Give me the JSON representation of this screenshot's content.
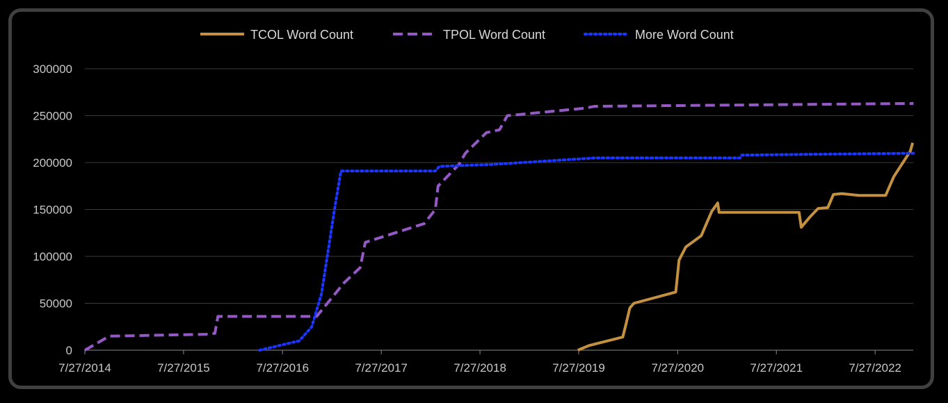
{
  "chart_data": {
    "type": "line",
    "title": "",
    "xlabel": "",
    "ylabel": "",
    "x_axis": {
      "type": "date",
      "range": [
        "2014-07-27",
        "2022-12-15"
      ],
      "tick_labels": [
        "7/27/2014",
        "7/27/2015",
        "7/27/2016",
        "7/27/2017",
        "7/27/2018",
        "7/27/2019",
        "7/27/2020",
        "7/27/2021",
        "7/27/2022"
      ]
    },
    "y_axis": {
      "ylim": [
        0,
        300000
      ],
      "tick_labels": [
        "0",
        "50000",
        "100000",
        "150000",
        "200000",
        "250000",
        "300000"
      ],
      "grid": true
    },
    "legend": {
      "position": "top"
    },
    "series": [
      {
        "name": "TCOL Word Count",
        "color": "#c3913f",
        "style": "solid",
        "points": [
          [
            "2019-07-24",
            0
          ],
          [
            "2019-09-03",
            5000
          ],
          [
            "2020-01-06",
            14000
          ],
          [
            "2020-01-18",
            28000
          ],
          [
            "2020-02-01",
            45000
          ],
          [
            "2020-02-16",
            50000
          ],
          [
            "2020-07-20",
            62000
          ],
          [
            "2020-08-01",
            96000
          ],
          [
            "2020-08-26",
            110000
          ],
          [
            "2020-10-22",
            122000
          ],
          [
            "2020-11-30",
            148000
          ],
          [
            "2020-12-22",
            157000
          ],
          [
            "2020-12-27",
            147000
          ],
          [
            "2021-10-19",
            147000
          ],
          [
            "2021-10-27",
            131000
          ],
          [
            "2021-11-28",
            142000
          ],
          [
            "2021-12-28",
            151000
          ],
          [
            "2022-02-02",
            152000
          ],
          [
            "2022-02-23",
            166000
          ],
          [
            "2022-03-25",
            167000
          ],
          [
            "2022-05-28",
            165000
          ],
          [
            "2022-09-04",
            165000
          ],
          [
            "2022-10-04",
            185000
          ],
          [
            "2022-12-04",
            212000
          ],
          [
            "2022-12-13",
            221000
          ]
        ]
      },
      {
        "name": "TPOL Word Count",
        "color": "#9459c5",
        "style": "dashed",
        "points": [
          [
            "2014-07-27",
            0
          ],
          [
            "2014-10-25",
            15000
          ],
          [
            "2015-10-17",
            17000
          ],
          [
            "2015-11-20",
            18000
          ],
          [
            "2015-12-01",
            36000
          ],
          [
            "2016-11-30",
            36000
          ],
          [
            "2017-03-12",
            72000
          ],
          [
            "2017-05-10",
            88000
          ],
          [
            "2017-05-29",
            115000
          ],
          [
            "2018-01-02",
            135000
          ],
          [
            "2018-02-12",
            150000
          ],
          [
            "2018-02-22",
            175000
          ],
          [
            "2018-05-10",
            198000
          ],
          [
            "2018-06-03",
            210000
          ],
          [
            "2018-08-20",
            232000
          ],
          [
            "2018-10-07",
            235000
          ],
          [
            "2018-11-05",
            250000
          ],
          [
            "2019-08-18",
            258000
          ],
          [
            "2019-09-24",
            260000
          ],
          [
            "2022-12-16",
            263000
          ]
        ]
      },
      {
        "name": "More Word Count",
        "color": "#1a36ff",
        "style": "dotted",
        "points": [
          [
            "2016-05-03",
            0
          ],
          [
            "2016-09-27",
            10000
          ],
          [
            "2016-11-12",
            25000
          ],
          [
            "2016-12-18",
            60000
          ],
          [
            "2017-02-04",
            150000
          ],
          [
            "2017-02-28",
            191000
          ],
          [
            "2018-02-12",
            191000
          ],
          [
            "2018-02-27",
            196000
          ],
          [
            "2018-09-07",
            198000
          ],
          [
            "2019-09-24",
            205000
          ],
          [
            "2021-03-15",
            205000
          ],
          [
            "2021-03-21",
            208000
          ],
          [
            "2022-12-16",
            210000
          ]
        ]
      }
    ]
  }
}
